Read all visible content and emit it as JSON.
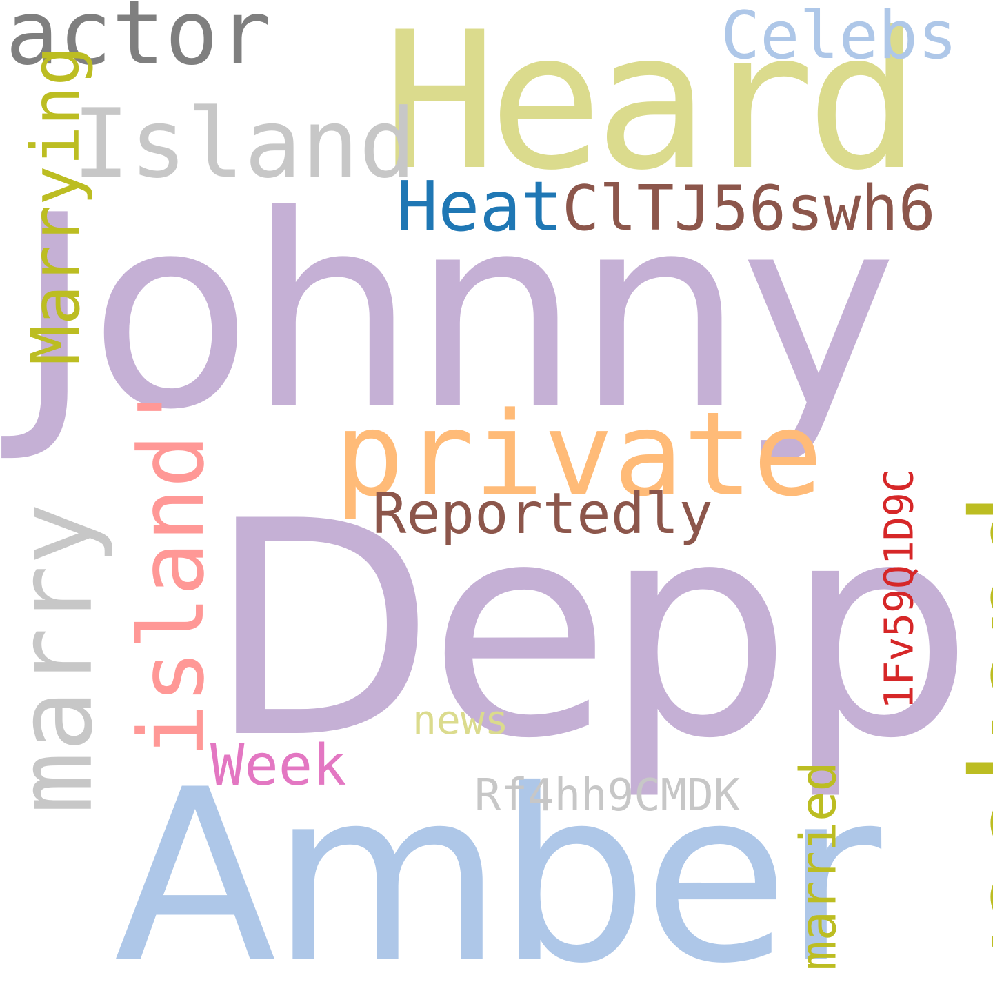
{
  "words": {
    "johnny": {
      "text": "Johnny",
      "color": "#c5b0d5"
    },
    "depp": {
      "text": "Depp",
      "color": "#c5b0d5"
    },
    "amber": {
      "text": "Amber",
      "color": "#aec7e8"
    },
    "heard": {
      "text": "Heard",
      "color": "#dbdb8d"
    },
    "private": {
      "text": "private",
      "color": "#ffbb78"
    },
    "weekend": {
      "text": "weekend",
      "color": "#bcbd22"
    },
    "marry": {
      "text": "marry",
      "color": "#c7c7c7"
    },
    "island_q": {
      "text": "island'",
      "color": "#ff9896"
    },
    "island_cap": {
      "text": "Island",
      "color": "#c7c7c7"
    },
    "actor": {
      "text": "actor",
      "color": "#7f7f7f"
    },
    "celebs": {
      "text": "Celebs",
      "color": "#aec7e8"
    },
    "marrying": {
      "text": "Marrying",
      "color": "#bcbd22"
    },
    "heat": {
      "text": "Heat",
      "color": "#1f77b4"
    },
    "code1": {
      "text": "ClTJ56swh6",
      "color": "#8c564b"
    },
    "reportedly": {
      "text": "Reportedly",
      "color": "#8c564b"
    },
    "code2": {
      "text": "1Fv59Q1D9C",
      "color": "#d62728"
    },
    "married": {
      "text": "married",
      "color": "#bcbd22"
    },
    "news": {
      "text": "news",
      "color": "#dbdb8d"
    },
    "week": {
      "text": "Week",
      "color": "#e377c2"
    },
    "code3": {
      "text": "Rf4hh9CMDK",
      "color": "#c7c7c7"
    }
  }
}
